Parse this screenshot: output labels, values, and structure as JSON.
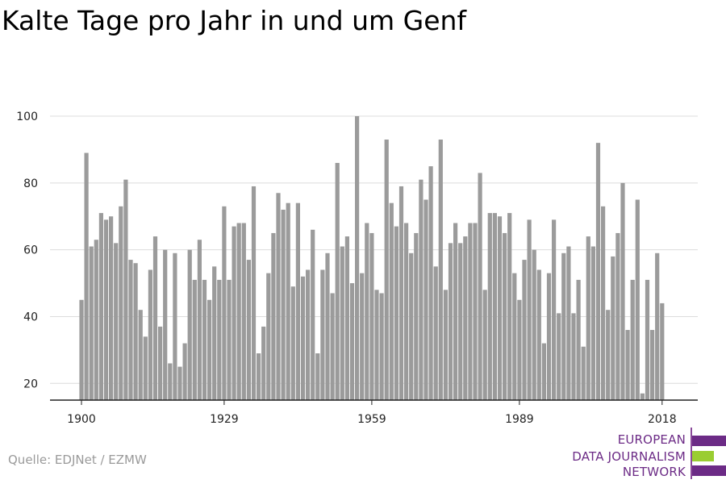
{
  "header": {
    "title": "Kalte Tage pro Jahr in und um Genf"
  },
  "footer": {
    "source": "Quelle: EDJNet / EZMW"
  },
  "logo": {
    "lines": [
      "EUROPEAN",
      "DATA JOURNALISM",
      "NETWORK"
    ],
    "colors": {
      "purple": "#6c2b86",
      "green": "#9acd32"
    }
  },
  "chart_data": {
    "type": "bar",
    "title": "Kalte Tage pro Jahr in und um Genf",
    "xlabel": "",
    "ylabel": "",
    "x_start": 1900,
    "x_end": 2018,
    "x_ticks": [
      1900,
      1929,
      1959,
      1989,
      2018
    ],
    "y_ticks": [
      20,
      40,
      60,
      80,
      100
    ],
    "ylim": [
      15,
      100
    ],
    "grid": true,
    "bar_color": "#9b9b9b",
    "values": [
      45,
      89,
      61,
      63,
      71,
      69,
      70,
      62,
      73,
      81,
      57,
      56,
      42,
      34,
      54,
      64,
      37,
      60,
      26,
      59,
      25,
      32,
      60,
      51,
      63,
      51,
      45,
      55,
      51,
      73,
      51,
      67,
      68,
      68,
      57,
      79,
      29,
      37,
      53,
      65,
      77,
      72,
      74,
      49,
      74,
      52,
      54,
      66,
      29,
      54,
      59,
      47,
      86,
      61,
      64,
      50,
      100,
      53,
      68,
      65,
      48,
      47,
      93,
      74,
      67,
      79,
      68,
      59,
      65,
      81,
      75,
      85,
      55,
      93,
      48,
      62,
      68,
      62,
      64,
      68,
      68,
      83,
      48,
      71,
      71,
      70,
      65,
      71,
      53,
      45,
      57,
      69,
      60,
      54,
      32,
      53,
      69,
      41,
      59,
      61,
      41,
      51,
      31,
      64,
      61,
      92,
      73,
      42,
      58,
      65,
      80,
      36,
      51,
      75,
      17,
      51,
      36,
      59,
      44
    ]
  }
}
